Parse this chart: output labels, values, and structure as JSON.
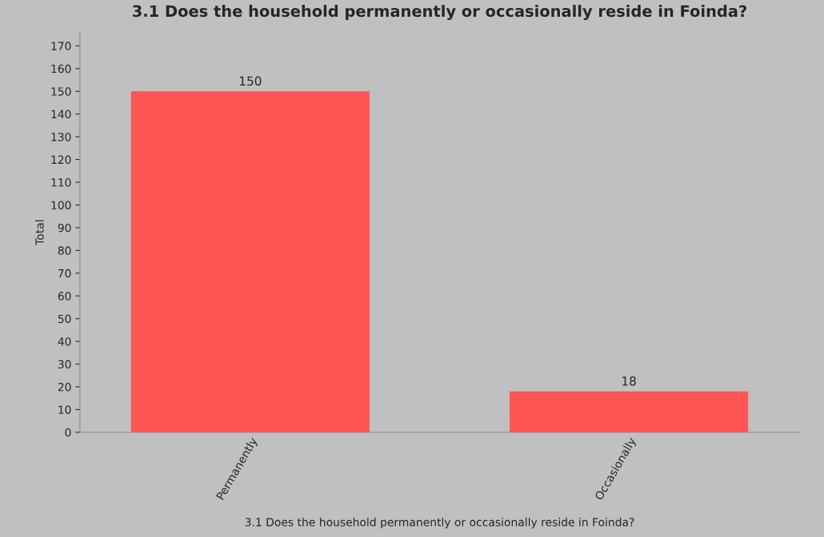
{
  "chart_data": {
    "type": "bar",
    "title": "3.1 Does the household permanently or occasionally reside in Foinda?",
    "xlabel": "3.1 Does the household permanently or occasionally reside in Foinda?",
    "ylabel": "Total",
    "categories": [
      "Permanently",
      "Occasionally"
    ],
    "values": [
      150,
      18
    ],
    "color": "#ff5555",
    "data_labels": true,
    "ylim": [
      0,
      176
    ],
    "yticks": [
      0,
      10,
      20,
      30,
      40,
      50,
      60,
      70,
      80,
      90,
      100,
      110,
      120,
      130,
      140,
      150,
      160,
      170
    ],
    "grid": false,
    "legend": false
  }
}
